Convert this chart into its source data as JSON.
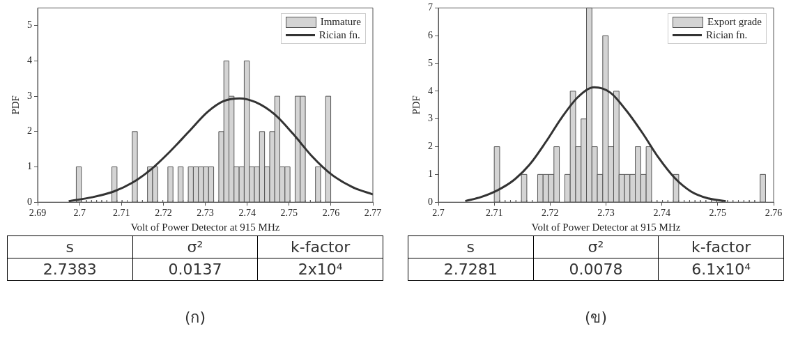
{
  "chart_data": [
    {
      "type": "histogram",
      "xlabel": "Volt of Power Detector at 915 MHz",
      "ylabel": "PDF",
      "bins": [
        2.69922,
        2.70043,
        2.70165,
        2.70286,
        2.70408,
        2.70529,
        2.70651,
        2.70772,
        2.70894,
        2.71015,
        2.71137,
        2.71258,
        2.7138,
        2.71501,
        2.71622,
        2.71744,
        2.71865,
        2.71987,
        2.72108,
        2.7223,
        2.72351,
        2.72473,
        2.72594,
        2.72716,
        2.72837,
        2.72959,
        2.7308,
        2.73201,
        2.73323,
        2.73444,
        2.73566,
        2.73687,
        2.73809,
        2.7393,
        2.74052,
        2.74173,
        2.74295,
        2.74416,
        2.74538,
        2.74659,
        2.7478,
        2.74902,
        2.75023,
        2.75145,
        2.75266,
        2.75388,
        2.75509,
        2.75631,
        2.75752,
        2.75874,
        2.75995
      ],
      "series": [
        {
          "name": "Immature",
          "type": "histogram",
          "color": "#d4d4d4",
          "values": [
            1,
            0,
            0,
            0,
            0,
            0,
            0,
            1,
            0,
            0,
            0,
            2,
            0,
            0,
            1,
            1,
            0,
            0,
            1,
            0,
            1,
            0,
            1,
            1,
            1,
            1,
            1,
            0,
            2,
            4,
            3,
            1,
            1,
            4,
            1,
            1,
            2,
            1,
            2,
            3,
            1,
            1,
            0,
            3,
            3,
            0,
            0,
            1,
            0,
            3
          ]
        },
        {
          "name": "Rician fn.",
          "type": "line",
          "color": "#333333",
          "x": [
            2.69742,
            2.70299,
            2.70811,
            2.71259,
            2.71707,
            2.72155,
            2.72603,
            2.73051,
            2.73435,
            2.73819,
            2.74203,
            2.74651,
            2.75099,
            2.75547,
            2.75995,
            2.76507,
            2.77
          ],
          "values": [
            0.03,
            0.14,
            0.3,
            0.55,
            0.93,
            1.43,
            1.99,
            2.55,
            2.86,
            2.94,
            2.83,
            2.49,
            1.93,
            1.3,
            0.8,
            0.43,
            0.22
          ]
        }
      ],
      "xlim": [
        2.69,
        2.77
      ],
      "xticks": [
        2.69,
        2.7,
        2.71,
        2.72,
        2.73,
        2.74,
        2.75,
        2.76,
        2.77
      ],
      "ylim": [
        0,
        5.5
      ],
      "yticks": [
        0,
        1,
        2,
        3,
        4,
        5
      ],
      "grid": false,
      "legend": "top right",
      "annotations": [
        "s",
        "σ²",
        "k-factor",
        "2.7383",
        "0.0137",
        "2x10⁴",
        "(ก)"
      ]
    },
    {
      "type": "histogram",
      "xlabel": "Volt of Power Detector at 915 MHz",
      "ylabel": "PDF",
      "bins": [
        2.71,
        2.71097,
        2.71194,
        2.71291,
        2.71388,
        2.71486,
        2.71583,
        2.7168,
        2.71777,
        2.71874,
        2.71971,
        2.72068,
        2.72165,
        2.72263,
        2.7236,
        2.72457,
        2.72554,
        2.72651,
        2.72748,
        2.72845,
        2.72942,
        2.7304,
        2.73137,
        2.73234,
        2.73331,
        2.73428,
        2.73525,
        2.73622,
        2.73719,
        2.73816,
        2.73914,
        2.74011,
        2.74108,
        2.74205,
        2.74302,
        2.74399,
        2.74496,
        2.74593,
        2.74691,
        2.74788,
        2.74885,
        2.74982,
        2.75079,
        2.75176,
        2.75273,
        2.7537,
        2.75468,
        2.75565,
        2.75662,
        2.75759,
        2.75856
      ],
      "series": [
        {
          "name": "Export grade",
          "type": "histogram",
          "color": "#d4d4d4",
          "values": [
            2,
            0,
            0,
            0,
            0,
            1,
            0,
            0,
            1,
            1,
            1,
            2,
            0,
            1,
            4,
            2,
            3,
            7,
            2,
            1,
            6,
            2,
            4,
            1,
            1,
            1,
            2,
            1,
            2,
            0,
            0,
            0,
            0,
            1,
            0,
            0,
            0,
            0,
            0,
            0,
            0,
            0,
            0,
            0,
            0,
            0,
            0,
            0,
            0,
            1
          ]
        },
        {
          "name": "Rician fn.",
          "type": "line",
          "color": "#333333",
          "x": [
            2.70481,
            2.70769,
            2.71058,
            2.71346,
            2.71635,
            2.71923,
            2.72212,
            2.725,
            2.72788,
            2.73077,
            2.73365,
            2.73654,
            2.73942,
            2.74231,
            2.74519,
            2.74808,
            2.75144
          ],
          "values": [
            0.04,
            0.19,
            0.43,
            0.79,
            1.36,
            2.17,
            3.06,
            3.79,
            4.14,
            3.95,
            3.3,
            2.49,
            1.6,
            0.87,
            0.39,
            0.15,
            0.04
          ]
        }
      ],
      "xlim": [
        2.7,
        2.76
      ],
      "xticks": [
        2.7,
        2.71,
        2.72,
        2.73,
        2.74,
        2.75,
        2.76
      ],
      "ylim": [
        0,
        7
      ],
      "yticks": [
        0,
        1,
        2,
        3,
        4,
        5,
        6,
        7
      ],
      "grid": false,
      "legend": "top right",
      "annotations": [
        "s",
        "σ²",
        "k-factor",
        "2.7281",
        "0.0078",
        "6.1x10⁴",
        "(ข)"
      ]
    }
  ]
}
